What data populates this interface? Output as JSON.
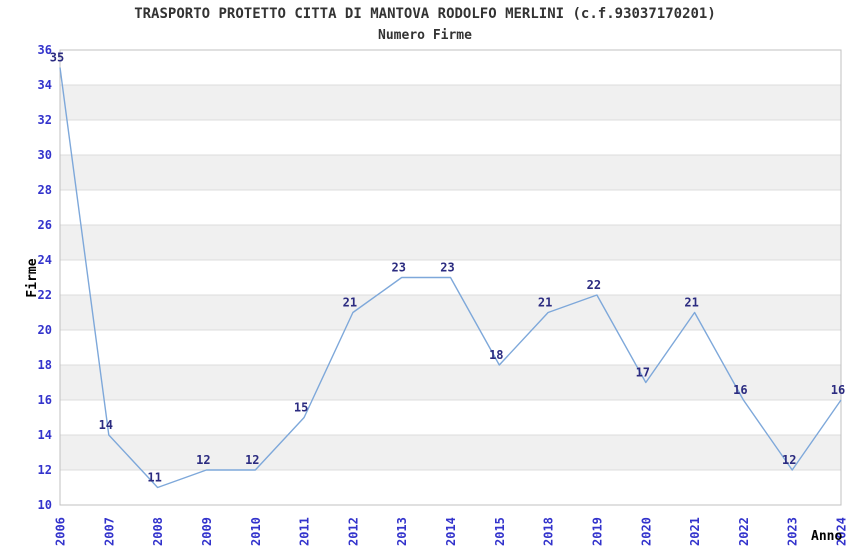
{
  "page": {
    "background": "#FFFFFF"
  },
  "chart_data": {
    "type": "line",
    "title": "TRASPORTO PROTETTO CITTA DI MANTOVA RODOLFO MERLINI (c.f.93037170201)",
    "subtitle": "Numero Firme",
    "xlabel": "Anno",
    "ylabel": "Firme",
    "categories": [
      "2006",
      "2007",
      "2008",
      "2009",
      "2010",
      "2011",
      "2012",
      "2013",
      "2014",
      "2015",
      "2018",
      "2019",
      "2020",
      "2021",
      "2022",
      "2023",
      "2024"
    ],
    "values": [
      35,
      14,
      11,
      12,
      12,
      15,
      21,
      23,
      23,
      18,
      21,
      22,
      17,
      21,
      16,
      12,
      16
    ],
    "point_labels": [
      "35",
      "14",
      "11",
      "12",
      "12",
      "15",
      "21",
      "23",
      "23",
      "18",
      "21",
      "22",
      "17",
      "21",
      "16",
      "12",
      "16"
    ],
    "ylim": [
      10,
      36
    ],
    "ytick_step": 2,
    "yticks": [
      36,
      34,
      32,
      30,
      28,
      26,
      24,
      22,
      20,
      18,
      16,
      14,
      12,
      10
    ],
    "legend": "none",
    "grid": "horizontal-alternating-bands",
    "markers": "none",
    "x_tick_rotation_deg": -90,
    "colors": {
      "line": "#7EA8DA",
      "value_labels": "#2B2B80",
      "tick_labels": "#3333CC",
      "axis_titles": "#000000",
      "title_text": "#333333",
      "band_fill": "#F0F0F0",
      "band_alt_fill": "#FFFFFF",
      "gridline": "#DCDCDC",
      "plot_border": "#C0C0C0",
      "background": "#FFFFFF"
    }
  }
}
